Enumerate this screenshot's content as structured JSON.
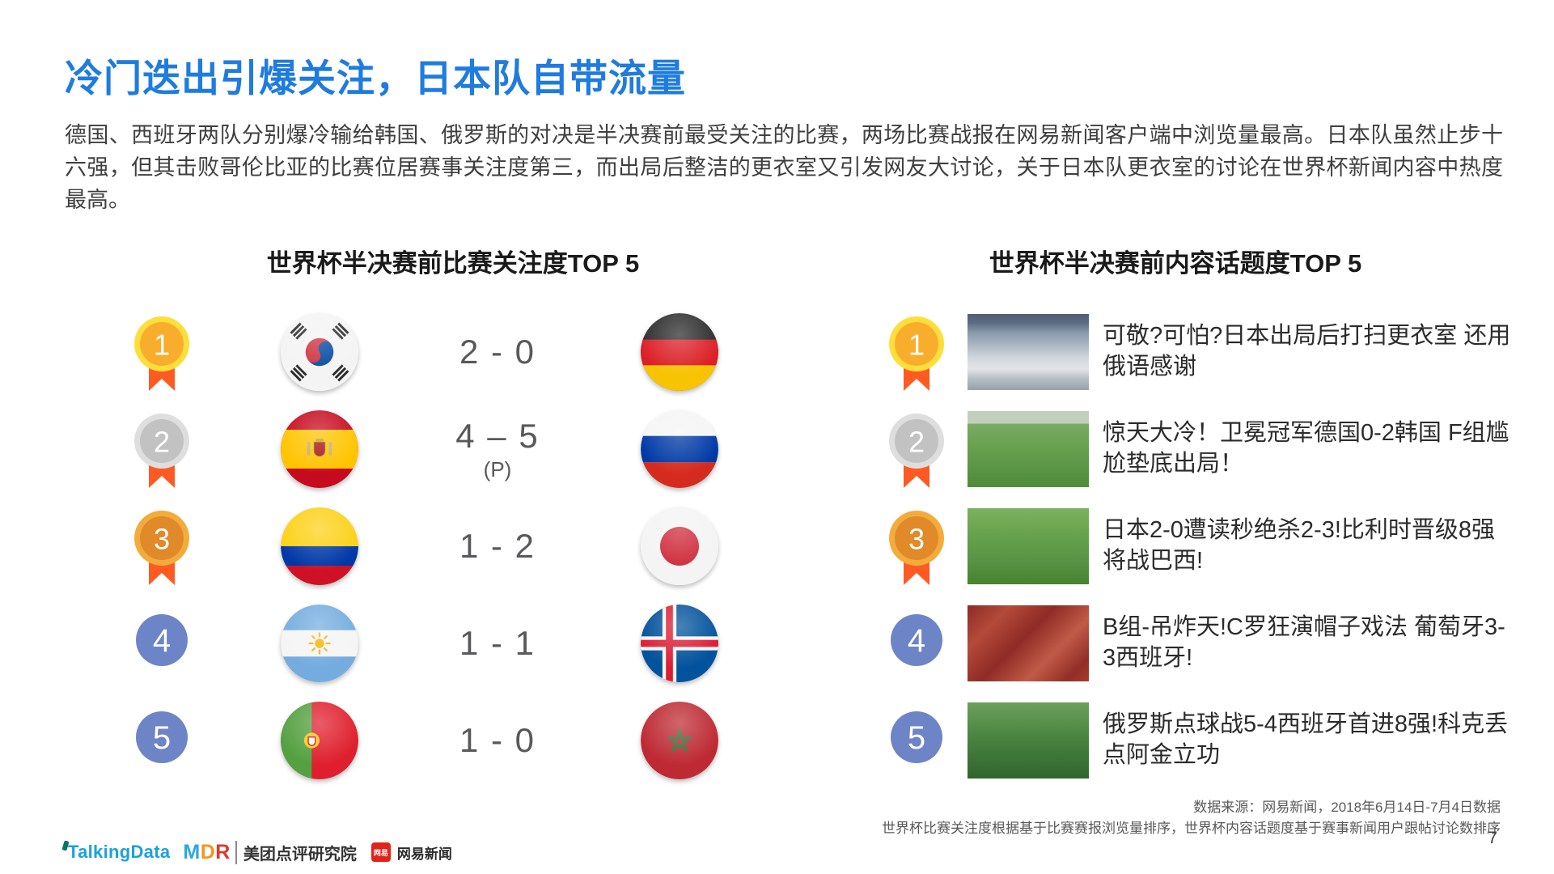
{
  "page": {
    "title": "冷门迭出引爆关注，日本队自带流量",
    "paragraph": "德国、西班牙两队分别爆冷输给韩国、俄罗斯的对决是半决赛前最受关注的比赛，两场比赛战报在网易新闻客户端中浏览量最高。日本队虽然止步十六强，但其击败哥伦比亚的比赛位居赛事关注度第三，而出局后整洁的更衣室又引发网友大讨论，关于日本队更衣室的讨论在世界杯新闻内容中热度最高。",
    "page_number": "7"
  },
  "colors": {
    "title_blue": "#1F7CDE",
    "body_text": "#3F3F3F",
    "header_text": "#1A1A1A",
    "score_gray": "#58595B",
    "gold_medal": "#F8AE2C",
    "silver_medal": "#C2C2C2",
    "bronze_medal": "#E08A2A",
    "ribbon_orange": "#FF5A22",
    "rank_blue": "#6D85C6",
    "talkingdata_blue": "#1BA1DC",
    "netease_red": "#E2231A"
  },
  "left_section": {
    "header": "世界杯半决赛前比赛关注度TOP 5",
    "rows": [
      {
        "rank": "1",
        "medal": "gold-ribbon",
        "home_flag": "south-korea",
        "score": "2 - 0",
        "note": "",
        "away_flag": "germany"
      },
      {
        "rank": "2",
        "medal": "silver-ribbon",
        "home_flag": "spain",
        "score": "4 – 5",
        "note": "(P)",
        "away_flag": "russia"
      },
      {
        "rank": "3",
        "medal": "bronze-ribbon",
        "home_flag": "colombia",
        "score": "1 - 2",
        "note": "",
        "away_flag": "japan"
      },
      {
        "rank": "4",
        "medal": "plain",
        "home_flag": "argentina",
        "score": "1 - 1",
        "note": "",
        "away_flag": "iceland"
      },
      {
        "rank": "5",
        "medal": "plain",
        "home_flag": "portugal",
        "score": "1 - 0",
        "note": "",
        "away_flag": "morocco"
      }
    ]
  },
  "right_section": {
    "header": "世界杯半决赛前内容话题度TOP 5",
    "rows": [
      {
        "rank": "1",
        "medal": "gold-ribbon",
        "thumbnail": "locker-room-photo",
        "headline": "可敬?可怕?日本出局后打扫更衣室 还用俄语感谢"
      },
      {
        "rank": "2",
        "medal": "silver-ribbon",
        "thumbnail": "goal-scramble-photo",
        "headline": "惊天大冷！卫冕冠军德国0-2韩国 F组尴尬垫底出局！"
      },
      {
        "rank": "3",
        "medal": "bronze-ribbon",
        "thumbnail": "pitch-despair-photo",
        "headline": "日本2-0遭读秒绝杀2-3!比利时晋级8强将战巴西!"
      },
      {
        "rank": "4",
        "medal": "plain",
        "thumbnail": "red-crowd-photo",
        "headline": "B组-吊炸天!C罗狂演帽子戏法 葡萄牙3-3西班牙!"
      },
      {
        "rank": "5",
        "medal": "plain",
        "thumbnail": "team-celebration-photo",
        "headline": "俄罗斯点球战5-4西班牙首进8强!科克丢点阿金立功"
      }
    ]
  },
  "footer": {
    "source_line1": "数据来源：网易新闻，2018年6月14日-7月4日数据",
    "source_line2": "世界杯比赛关注度根据基于比赛赛报浏览量排序，世界杯内容话题度基于赛事新闻用户跟帖讨论数排序",
    "logos": {
      "talkingdata": "TalkingData",
      "mdr": "MDR",
      "meituan": "美团点评研究院",
      "netease_badge": "网易",
      "netease": "网易新闻"
    }
  }
}
